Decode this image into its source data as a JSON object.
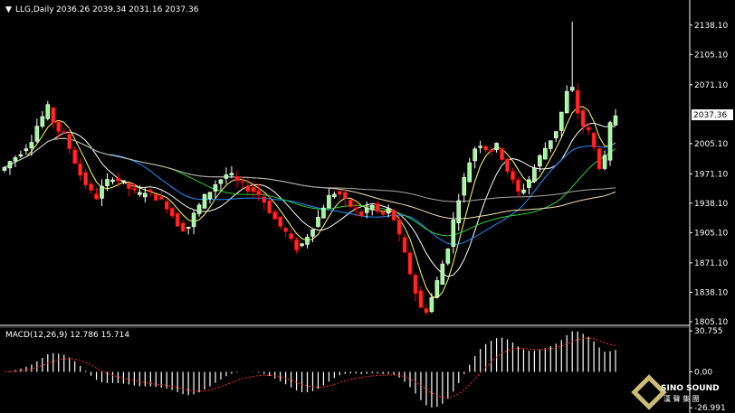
{
  "chart_data": [
    {
      "type": "candlestick",
      "symbol": "LLG,Daily",
      "ohlc_readout": "2036.26 2039.34 2031.16 2037.36",
      "last_price": "2037.36",
      "price_ticks": [
        "2138.10",
        "2105.10",
        "2071.10",
        "2037.36",
        "2005.10",
        "1971.10",
        "1938.10",
        "1905.10",
        "1871.10",
        "1838.10",
        "1805.10"
      ],
      "ylim": [
        1803,
        2148
      ],
      "candles_close_path": [
        1978,
        1985,
        1990,
        1996,
        2002,
        2010,
        2025,
        2035,
        2045,
        2030,
        2020,
        2015,
        2000,
        1985,
        1970,
        1960,
        1950,
        1945,
        1955,
        1962,
        1968,
        1964,
        1960,
        1955,
        1950,
        1948,
        1952,
        1950,
        1945,
        1940,
        1935,
        1925,
        1915,
        1910,
        1912,
        1925,
        1935,
        1945,
        1952,
        1960,
        1965,
        1970,
        1968,
        1962,
        1958,
        1955,
        1952,
        1948,
        1940,
        1930,
        1920,
        1912,
        1905,
        1895,
        1888,
        1892,
        1902,
        1912,
        1922,
        1935,
        1945,
        1950,
        1948,
        1940,
        1935,
        1930,
        1925,
        1932,
        1935,
        1928,
        1925,
        1930,
        1920,
        1900,
        1880,
        1860,
        1838,
        1820,
        1818,
        1832,
        1850,
        1870,
        1890,
        1918,
        1945,
        1965,
        1985,
        2000,
        2005,
        2000,
        1998,
        2002,
        1990,
        1975,
        1962,
        1950,
        1955,
        1965,
        1978,
        1990,
        2000,
        2010,
        2020,
        2040,
        2062,
        2066,
        2040,
        2025,
        2018,
        2000,
        1980,
        1988,
        2025,
        2037
      ],
      "moving_averages": [
        "yellow",
        "deepskyblue",
        "limegreen",
        "wheat",
        "gray",
        "khaki"
      ],
      "colors": {
        "up": "#ffffff",
        "down": "#ff0000",
        "bull_body": "#98fb98",
        "bear_body": "#ff2a2a"
      }
    },
    {
      "type": "bar",
      "indicator": "MACD(12,26,9) 12.786 15.714",
      "macd_ticks": [
        "30.755",
        "0.00",
        "-26.991"
      ],
      "ylim": [
        -27.5,
        31.5
      ]
    }
  ],
  "branding": {
    "logo_main": "SINO SOUND",
    "logo_sub": "漢 聲 集 團"
  }
}
